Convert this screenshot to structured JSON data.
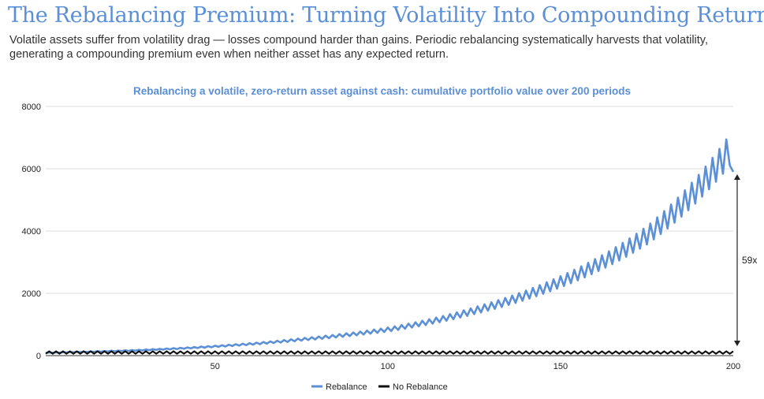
{
  "header": {
    "title": "The Rebalancing Premium: Turning Volatility Into Compounding Returns",
    "subtitle": "Volatile assets suffer from volatility drag — losses compound harder than gains. Periodic rebalancing systematically harvests that volatility, generating a compounding premium even when neither asset has any expected return."
  },
  "chart_data": {
    "type": "line",
    "title": "Rebalancing a volatile, zero-return asset against cash: cumulative portfolio value over 200 periods",
    "xlabel": "",
    "ylabel": "",
    "xlim": [
      1,
      200
    ],
    "ylim": [
      0,
      8000
    ],
    "x_ticks": [
      50,
      100,
      150,
      200
    ],
    "y_ticks": [
      0,
      2000,
      4000,
      6000,
      8000
    ],
    "grid": "horizontal",
    "legend": "bottom-center",
    "series": [
      {
        "name": "Rebalance",
        "color": "#5b8fd6",
        "pattern": "alternating up/down each period (zigzag)",
        "start_value": 100,
        "values_at_x": [
          {
            "x": 1,
            "y": 100
          },
          {
            "x": 25,
            "y": 175
          },
          {
            "x": 50,
            "y": 320
          },
          {
            "x": 75,
            "y": 560
          },
          {
            "x": 100,
            "y": 900
          },
          {
            "x": 125,
            "y": 1550
          },
          {
            "x": 150,
            "y": 2550
          },
          {
            "x": 175,
            "y": 4150
          },
          {
            "x": 199,
            "y": 7100
          },
          {
            "x": 200,
            "y": 5900
          }
        ]
      },
      {
        "name": "No Rebalance",
        "color": "#111111",
        "pattern": "alternating up/down each period, flat around 100",
        "values_at_x": [
          {
            "x": 1,
            "y": 100
          },
          {
            "x": 100,
            "y": 100
          },
          {
            "x": 200,
            "y": 100
          }
        ]
      }
    ],
    "annotation": {
      "text": "59x",
      "from_value": 100,
      "to_value": 5900,
      "at_x": 200
    }
  }
}
